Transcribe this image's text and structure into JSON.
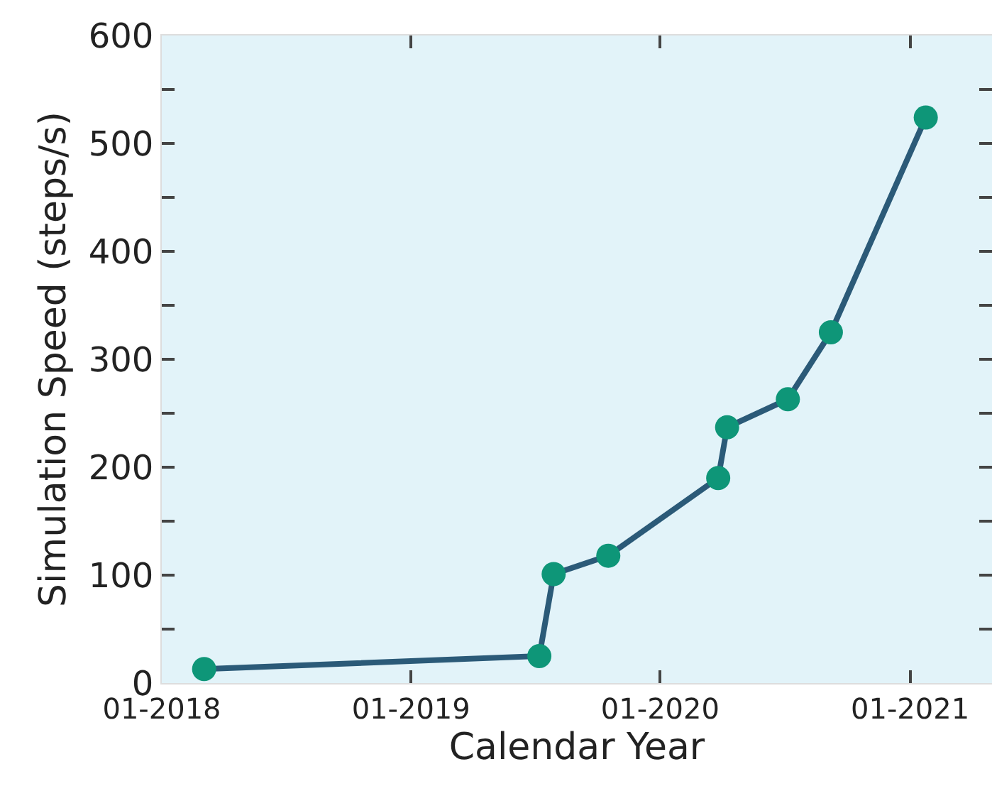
{
  "chart_data": {
    "type": "line",
    "xlabel": "Calendar Year",
    "ylabel": "Simulation Speed (steps/s)",
    "x": [
      "2018-03-04",
      "2019-07-08",
      "2019-07-29",
      "2019-10-17",
      "2020-03-26",
      "2020-04-08",
      "2020-07-06",
      "2020-09-07",
      "2021-01-24"
    ],
    "series": [
      {
        "color": "#0e9678",
        "values": [
          13,
          25,
          101,
          118,
          190,
          237,
          263,
          325,
          524
        ]
      }
    ],
    "marker": "circle",
    "line_style": "solid",
    "grid": false,
    "xlim": [
      "2018-01-01",
      "2021-05-01"
    ],
    "xticks": [
      {
        "value": "2018-01-01",
        "label": "01-2018"
      },
      {
        "value": "2019-01-01",
        "label": "01-2019"
      },
      {
        "value": "2020-01-01",
        "label": "01-2020"
      },
      {
        "value": "2021-01-01",
        "label": "01-2021"
      }
    ],
    "ylim": [
      0,
      600
    ],
    "yticks": [
      0,
      {
        "value": 50,
        "label": null
      },
      100,
      {
        "value": 150,
        "label": null
      },
      200,
      {
        "value": 250,
        "label": null
      },
      300,
      {
        "value": 350,
        "label": null
      },
      400,
      {
        "value": 450,
        "label": null
      },
      500,
      {
        "value": 550,
        "label": null
      },
      600
    ]
  }
}
